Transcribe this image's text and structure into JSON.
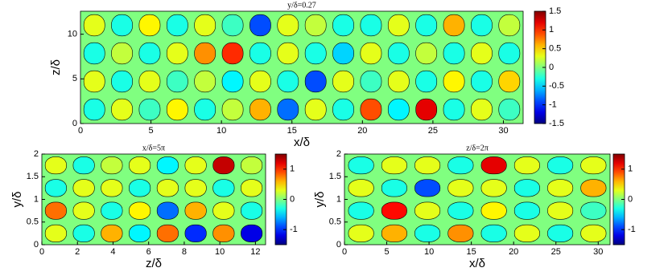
{
  "chart_data": [
    {
      "type": "heatmap",
      "title": "y/δ=0.27",
      "x_label": "x/δ",
      "y_label": "z/δ",
      "xlim": [
        0,
        31.4
      ],
      "xticks": [
        0,
        5,
        10,
        15,
        20,
        25,
        30
      ],
      "ylim": [
        0,
        12.57
      ],
      "yticks": [
        0,
        5,
        10
      ],
      "clim": [
        -1.5,
        1.5
      ],
      "cticks": [
        1.5,
        1,
        0.5,
        0,
        -0.5,
        -1,
        -1.5
      ],
      "values": [
        [
          -0.3,
          0.3,
          -0.2,
          0.4,
          -0.3,
          0.2,
          0.6,
          -0.8,
          0.3,
          -0.3,
          0.9,
          -0.4,
          1.2,
          -0.3,
          0.3,
          -0.2
        ],
        [
          0.3,
          -0.3,
          0.3,
          -0.2,
          0.2,
          -0.4,
          0.3,
          -0.3,
          -0.9,
          0.3,
          -0.2,
          0.3,
          -0.3,
          0.4,
          -0.3,
          0.5
        ],
        [
          -0.3,
          0.2,
          -0.3,
          0.3,
          0.7,
          1.0,
          -0.3,
          0.3,
          -0.3,
          -0.5,
          0.3,
          -0.3,
          0.2,
          -0.3,
          0.3,
          -0.3
        ],
        [
          0.3,
          -0.3,
          0.4,
          -0.3,
          0.3,
          -0.2,
          -0.9,
          0.3,
          0.2,
          -0.3,
          -0.3,
          0.3,
          -0.3,
          0.6,
          -0.3,
          0.2
        ]
      ]
    },
    {
      "type": "heatmap",
      "title": "x/δ=5π",
      "x_label": "z/δ",
      "y_label": "y/δ",
      "xlim": [
        0,
        12.57
      ],
      "xticks": [
        0,
        2,
        4,
        6,
        8,
        10,
        12
      ],
      "ylim": [
        0,
        2
      ],
      "yticks": [
        0,
        0.5,
        1,
        1.5,
        2
      ],
      "clim": [
        -1.5,
        1.5
      ],
      "cticks": [
        1,
        0,
        -1
      ],
      "values": [
        [
          0.3,
          -0.3,
          0.6,
          -0.4,
          0.8,
          -1.0,
          0.7,
          -1.2
        ],
        [
          0.8,
          0.3,
          -0.3,
          0.4,
          -0.8,
          0.6,
          0.3,
          -0.3
        ],
        [
          -0.3,
          0.3,
          0.3,
          -0.3,
          0.3,
          0.3,
          -0.3,
          0.3
        ],
        [
          0.3,
          -0.3,
          0.2,
          0.3,
          -0.4,
          0.3,
          1.3,
          0.2
        ]
      ]
    },
    {
      "type": "heatmap",
      "title": "z/δ=2π",
      "x_label": "x/δ",
      "y_label": "y/δ",
      "xlim": [
        0,
        31.4
      ],
      "xticks": [
        0,
        5,
        10,
        15,
        20,
        25,
        30
      ],
      "ylim": [
        0,
        2
      ],
      "yticks": [
        0,
        0.5,
        1,
        1.5,
        2
      ],
      "clim": [
        -1.5,
        1.5
      ],
      "cticks": [
        1,
        0,
        -1
      ],
      "values": [
        [
          0.3,
          0.6,
          -0.3,
          0.7,
          -0.3,
          0.3,
          -0.3,
          0.3
        ],
        [
          -0.3,
          1.1,
          0.3,
          -0.3,
          0.4,
          -0.3,
          0.3,
          -0.2
        ],
        [
          0.3,
          -0.3,
          -0.9,
          0.3,
          0.3,
          -0.3,
          0.3,
          0.6
        ],
        [
          -0.3,
          0.3,
          0.3,
          -0.3,
          1.2,
          0.3,
          -0.3,
          0.3
        ]
      ]
    }
  ]
}
